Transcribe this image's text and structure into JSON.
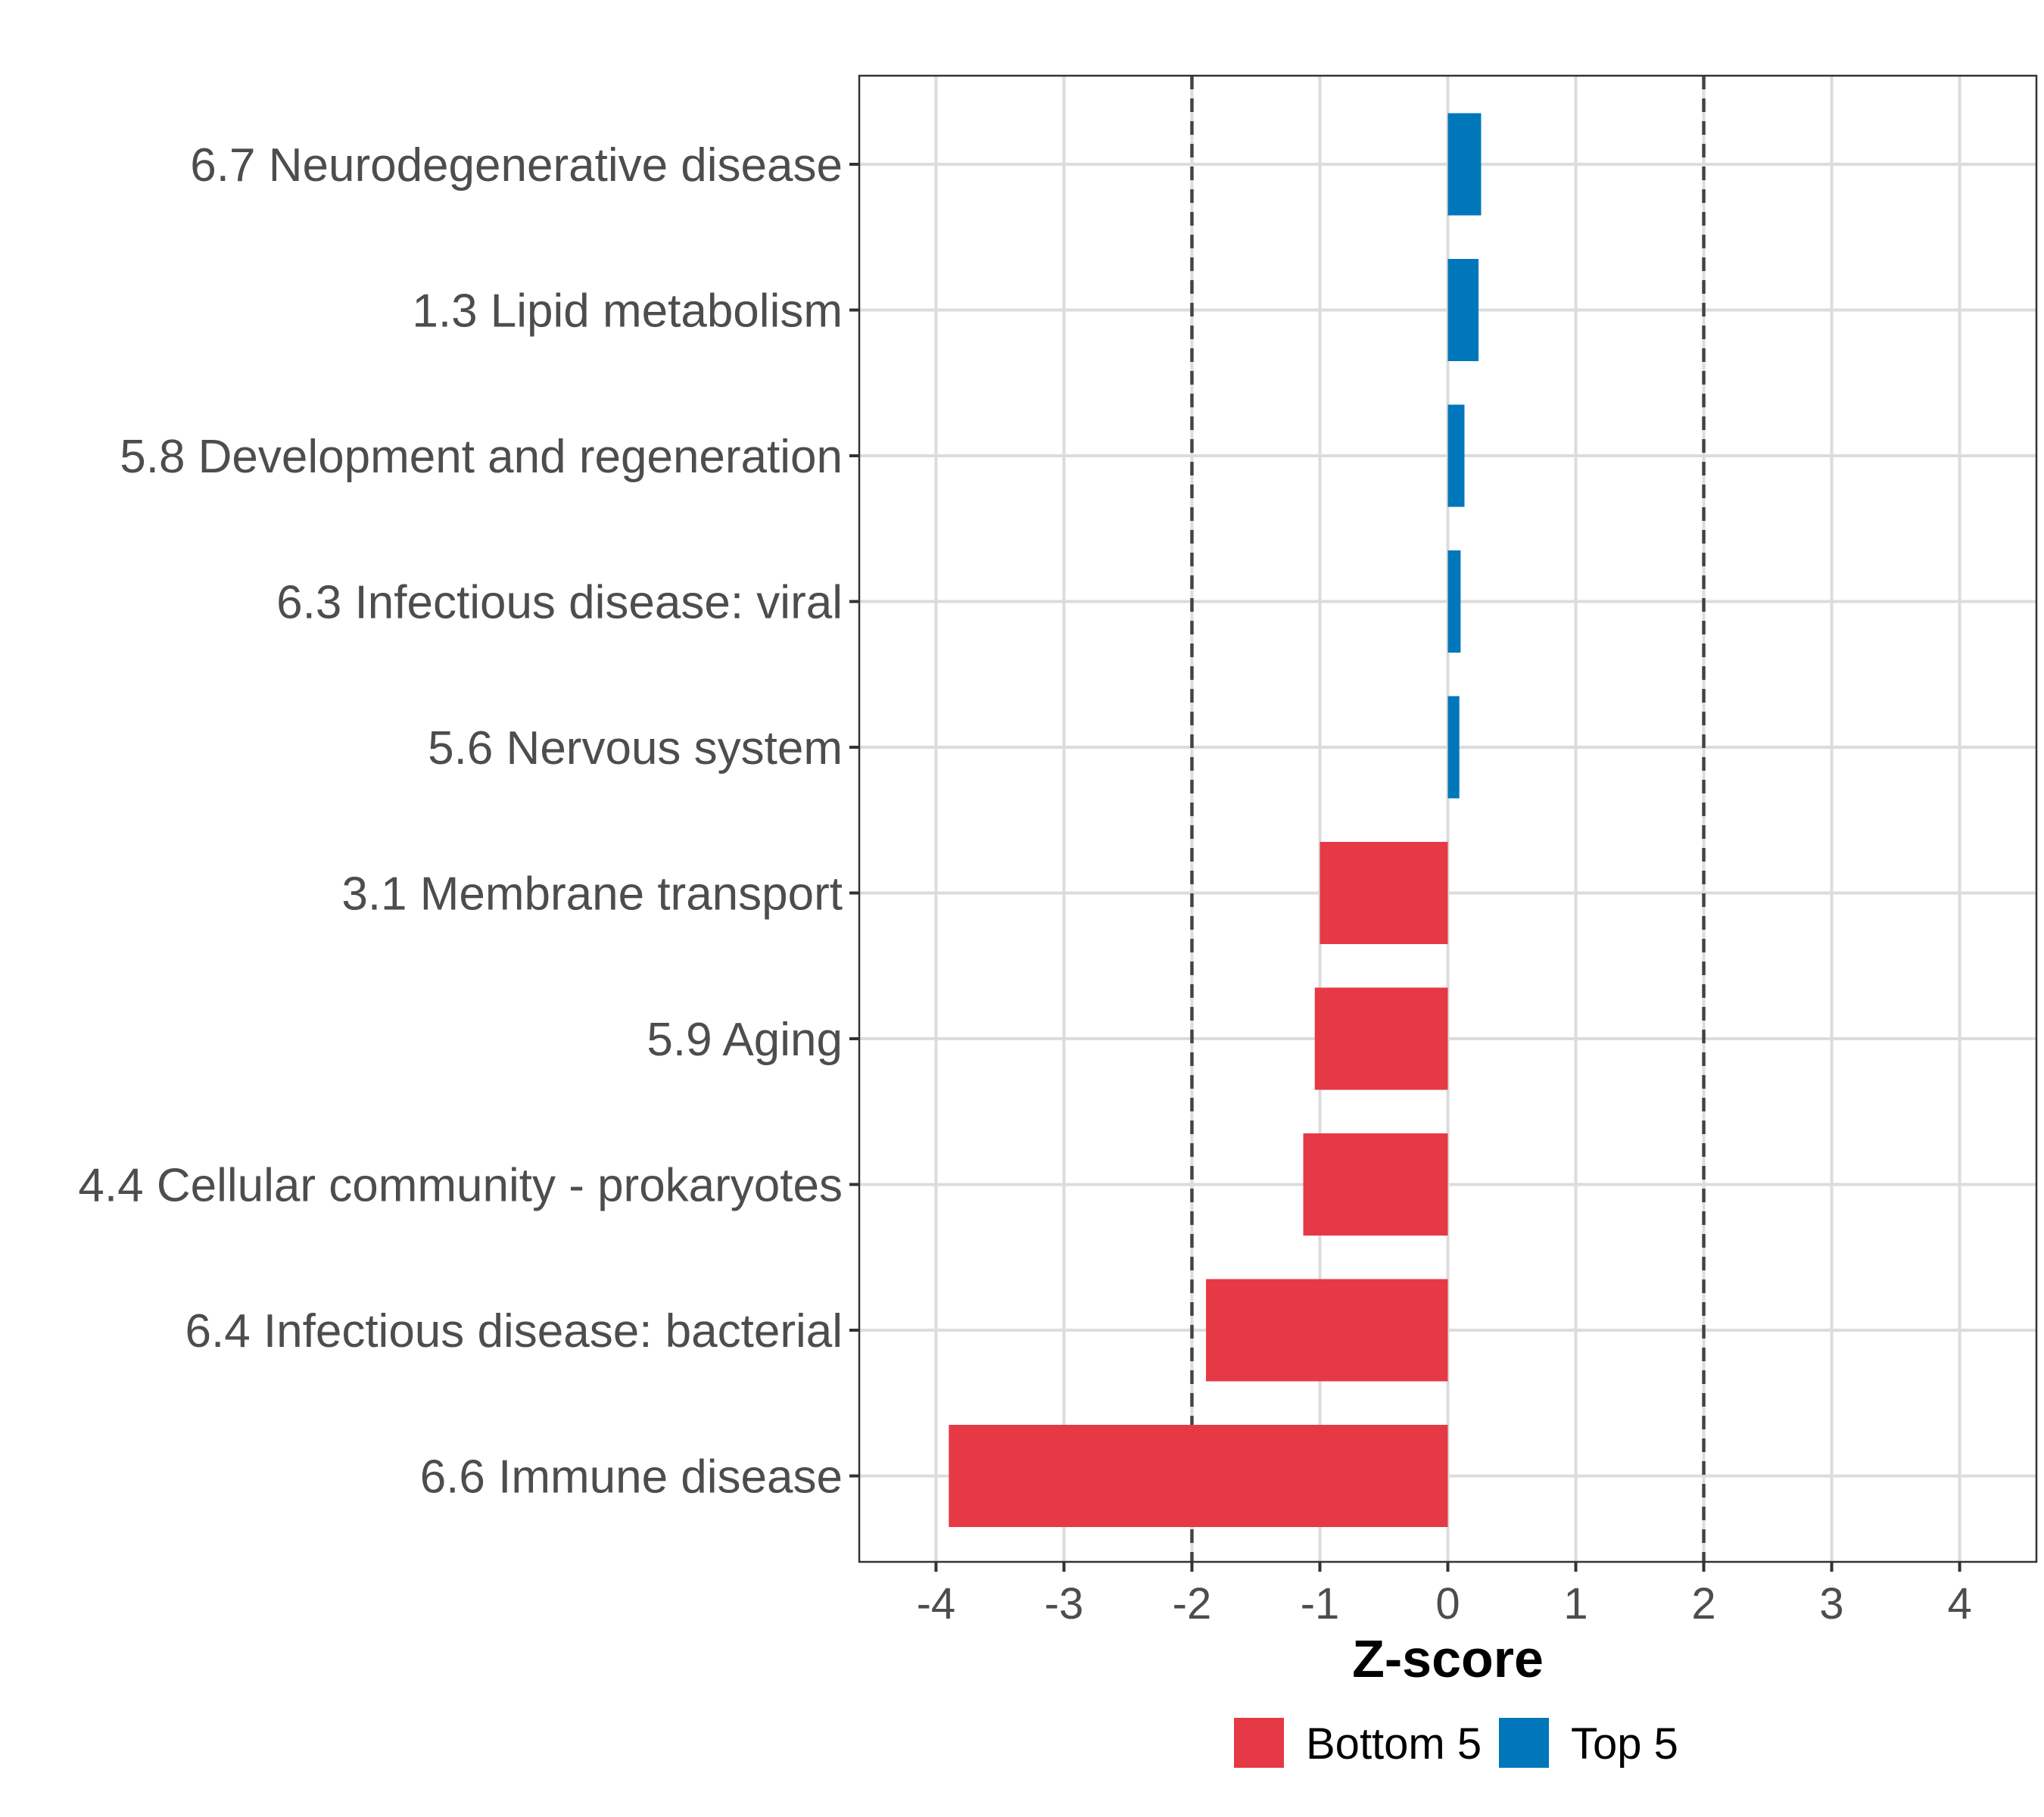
{
  "chart_data": {
    "type": "bar",
    "orientation": "horizontal",
    "title": "",
    "xlabel": "Z-score",
    "ylabel": "",
    "xlim": [
      -4.6,
      4.6
    ],
    "xticks": [
      -4,
      -3,
      -2,
      -1,
      0,
      1,
      2,
      3,
      4
    ],
    "xtick_labels": [
      "-4",
      "-3",
      "-2",
      "-1",
      "0",
      "1",
      "2",
      "3",
      "4"
    ],
    "reference_lines": [
      -2,
      2
    ],
    "grid": true,
    "legend_position": "bottom",
    "categories": [
      "6.7 Neurodegenerative disease",
      "1.3 Lipid metabolism",
      "5.8 Development and regeneration",
      "6.3 Infectious disease: viral",
      "5.6 Nervous system",
      "3.1 Membrane transport",
      "5.9 Aging",
      "4.4 Cellular community - prokaryotes",
      "6.4 Infectious disease: bacterial",
      "6.6 Immune disease"
    ],
    "values": [
      0.26,
      0.24,
      0.13,
      0.1,
      0.09,
      -1.0,
      -1.04,
      -1.13,
      -1.89,
      -3.9
    ],
    "groups": [
      "Top 5",
      "Top 5",
      "Top 5",
      "Top 5",
      "Top 5",
      "Bottom 5",
      "Bottom 5",
      "Bottom 5",
      "Bottom 5",
      "Bottom 5"
    ],
    "legend": [
      {
        "name": "Bottom 5",
        "color": "#e63946"
      },
      {
        "name": "Top 5",
        "color": "#0077bb"
      }
    ]
  }
}
